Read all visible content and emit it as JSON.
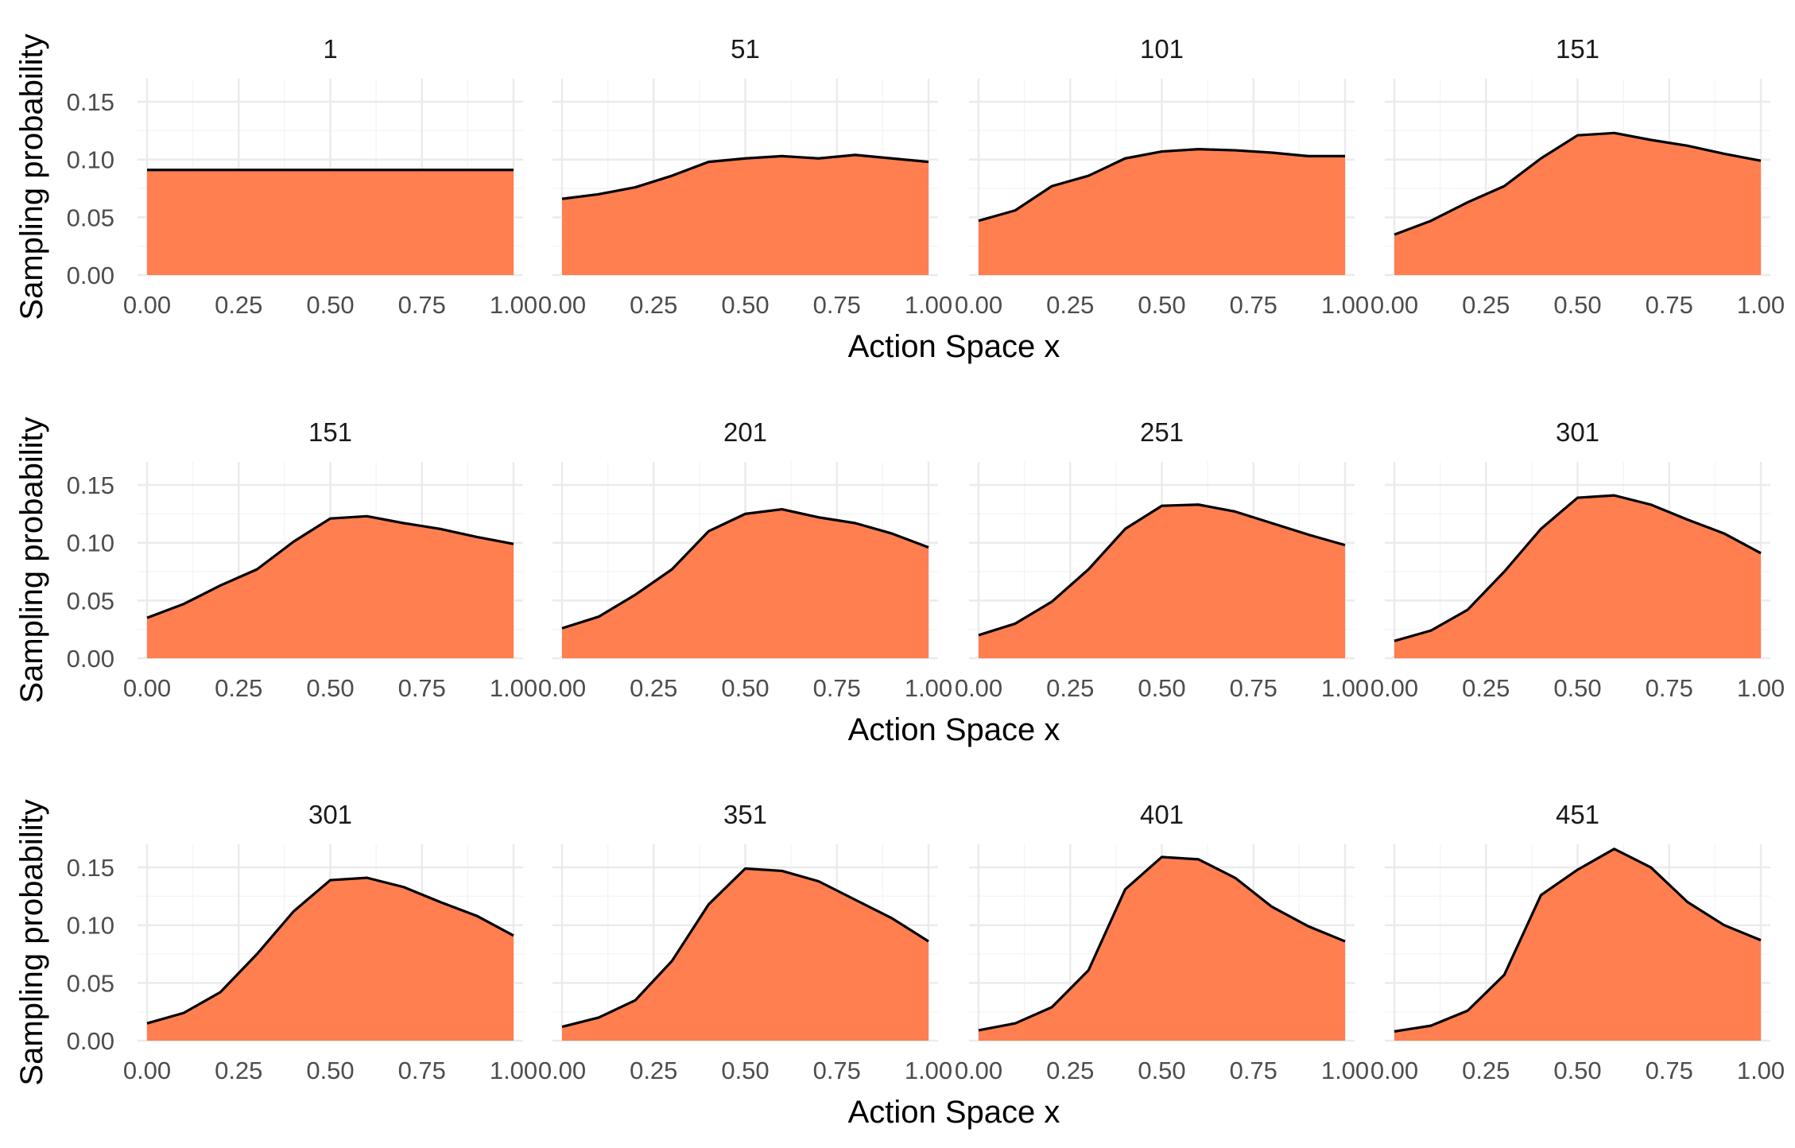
{
  "colors": {
    "fill": "#FF7F50",
    "line": "#000000",
    "grid_major": "#EBEBEB",
    "grid_minor": "#F5F5F5"
  },
  "chart_data": [
    {
      "type": "area",
      "xlabel": "Action Space x",
      "ylabel": "Sampling probability",
      "xlim": [
        0,
        1
      ],
      "ylim": [
        0,
        0.17
      ],
      "x_ticks": [
        "0.00",
        "0.25",
        "0.50",
        "0.75",
        "1.00"
      ],
      "y_ticks": [
        "0.00",
        "0.05",
        "0.10",
        "0.15"
      ],
      "grid": true,
      "x": [
        0.0,
        0.1,
        0.2,
        0.3,
        0.4,
        0.5,
        0.6,
        0.7,
        0.8,
        0.9,
        1.0
      ],
      "panels": [
        {
          "title": "1",
          "values": [
            0.091,
            0.091,
            0.091,
            0.091,
            0.091,
            0.091,
            0.091,
            0.091,
            0.091,
            0.091,
            0.091
          ]
        },
        {
          "title": "51",
          "values": [
            0.066,
            0.07,
            0.076,
            0.086,
            0.098,
            0.101,
            0.103,
            0.101,
            0.104,
            0.101,
            0.098
          ]
        },
        {
          "title": "101",
          "values": [
            0.047,
            0.056,
            0.077,
            0.086,
            0.101,
            0.107,
            0.109,
            0.108,
            0.106,
            0.103,
            0.103
          ]
        },
        {
          "title": "151",
          "values": [
            0.035,
            0.047,
            0.063,
            0.077,
            0.101,
            0.121,
            0.123,
            0.117,
            0.112,
            0.105,
            0.099
          ]
        }
      ]
    },
    {
      "type": "area",
      "xlabel": "Action Space x",
      "ylabel": "Sampling probability",
      "xlim": [
        0,
        1
      ],
      "ylim": [
        0,
        0.17
      ],
      "x_ticks": [
        "0.00",
        "0.25",
        "0.50",
        "0.75",
        "1.00"
      ],
      "y_ticks": [
        "0.00",
        "0.05",
        "0.10",
        "0.15"
      ],
      "grid": true,
      "x": [
        0.0,
        0.1,
        0.2,
        0.3,
        0.4,
        0.5,
        0.6,
        0.7,
        0.8,
        0.9,
        1.0
      ],
      "panels": [
        {
          "title": "151",
          "values": [
            0.035,
            0.047,
            0.063,
            0.077,
            0.101,
            0.121,
            0.123,
            0.117,
            0.112,
            0.105,
            0.099
          ]
        },
        {
          "title": "201",
          "values": [
            0.026,
            0.036,
            0.055,
            0.077,
            0.11,
            0.125,
            0.129,
            0.122,
            0.117,
            0.108,
            0.096
          ]
        },
        {
          "title": "251",
          "values": [
            0.02,
            0.03,
            0.049,
            0.077,
            0.112,
            0.132,
            0.133,
            0.127,
            0.117,
            0.107,
            0.098
          ]
        },
        {
          "title": "301",
          "values": [
            0.015,
            0.024,
            0.042,
            0.075,
            0.112,
            0.139,
            0.141,
            0.133,
            0.12,
            0.108,
            0.091
          ]
        }
      ]
    },
    {
      "type": "area",
      "xlabel": "Action Space x",
      "ylabel": "Sampling probability",
      "xlim": [
        0,
        1
      ],
      "ylim": [
        0,
        0.17
      ],
      "x_ticks": [
        "0.00",
        "0.25",
        "0.50",
        "0.75",
        "1.00"
      ],
      "y_ticks": [
        "0.00",
        "0.05",
        "0.10",
        "0.15"
      ],
      "grid": true,
      "x": [
        0.0,
        0.1,
        0.2,
        0.3,
        0.4,
        0.5,
        0.6,
        0.7,
        0.8,
        0.9,
        1.0
      ],
      "panels": [
        {
          "title": "301",
          "values": [
            0.015,
            0.024,
            0.042,
            0.075,
            0.112,
            0.139,
            0.141,
            0.133,
            0.12,
            0.108,
            0.091
          ]
        },
        {
          "title": "351",
          "values": [
            0.012,
            0.02,
            0.035,
            0.069,
            0.118,
            0.149,
            0.147,
            0.138,
            0.122,
            0.106,
            0.086
          ]
        },
        {
          "title": "401",
          "values": [
            0.009,
            0.015,
            0.029,
            0.061,
            0.131,
            0.159,
            0.157,
            0.141,
            0.116,
            0.099,
            0.086
          ]
        },
        {
          "title": "451",
          "values": [
            0.008,
            0.013,
            0.026,
            0.057,
            0.126,
            0.148,
            0.166,
            0.15,
            0.12,
            0.1,
            0.087
          ]
        }
      ]
    }
  ]
}
